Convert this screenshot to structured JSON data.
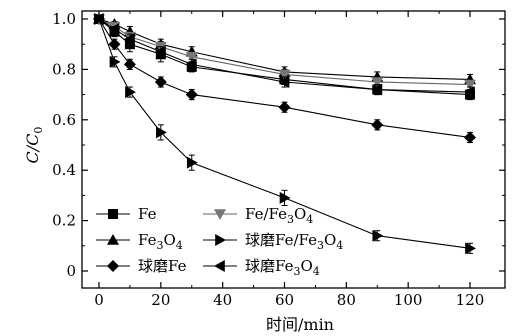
{
  "chart_data": {
    "type": "line",
    "xlabel": "时间/min",
    "ylabel": "C/C",
    "ylabel_sub": "0",
    "xlim": [
      -5,
      122
    ],
    "ylim": [
      -0.05,
      1.02
    ],
    "xticks": [
      "0",
      "20",
      "40",
      "60",
      "80",
      "100",
      "120"
    ],
    "yticks": [
      "0",
      "0.2",
      "0.4",
      "0.6",
      "0.8",
      "1.0"
    ],
    "legend_position": "bottom-left",
    "series": [
      {
        "name": "Fe",
        "name_parts": [
          {
            "t": "Fe"
          }
        ],
        "marker": "square",
        "x": [
          0,
          5,
          10,
          20,
          30,
          60,
          90,
          120
        ],
        "y": [
          1.0,
          0.95,
          0.9,
          0.86,
          0.81,
          0.76,
          0.72,
          0.7
        ],
        "err": [
          0.01,
          0.02,
          0.03,
          0.03,
          0.02,
          0.02,
          0.02,
          0.02
        ]
      },
      {
        "name": "Fe3O4",
        "name_parts": [
          {
            "t": "Fe"
          },
          {
            "t": "3",
            "sub": true
          },
          {
            "t": "O"
          },
          {
            "t": "4",
            "sub": true
          }
        ],
        "marker": "triangle-up",
        "x": [
          0,
          5,
          10,
          20,
          30,
          60,
          90,
          120
        ],
        "y": [
          1.0,
          0.98,
          0.95,
          0.9,
          0.87,
          0.79,
          0.77,
          0.76
        ],
        "err": [
          0.01,
          0.01,
          0.02,
          0.02,
          0.02,
          0.02,
          0.02,
          0.02
        ]
      },
      {
        "name": "球磨Fe",
        "name_parts": [
          {
            "t": "球磨Fe"
          }
        ],
        "marker": "diamond",
        "x": [
          0,
          5,
          10,
          20,
          30,
          60,
          90,
          120
        ],
        "y": [
          1.0,
          0.9,
          0.82,
          0.75,
          0.7,
          0.65,
          0.58,
          0.53
        ],
        "err": [
          0.01,
          0.02,
          0.02,
          0.02,
          0.02,
          0.02,
          0.02,
          0.02
        ]
      },
      {
        "name": "Fe/Fe3O4",
        "name_parts": [
          {
            "t": "Fe/Fe"
          },
          {
            "t": "3",
            "sub": true
          },
          {
            "t": "O"
          },
          {
            "t": "4",
            "sub": true
          }
        ],
        "marker": "triangle-down",
        "x": [
          0,
          5,
          10,
          20,
          30,
          60,
          90,
          120
        ],
        "y": [
          1.0,
          0.97,
          0.93,
          0.89,
          0.85,
          0.78,
          0.75,
          0.74
        ],
        "err": [
          0.01,
          0.01,
          0.02,
          0.02,
          0.02,
          0.02,
          0.02,
          0.02
        ]
      },
      {
        "name": "球磨Fe/Fe3O4",
        "name_parts": [
          {
            "t": "球磨Fe/Fe"
          },
          {
            "t": "3",
            "sub": true
          },
          {
            "t": "O"
          },
          {
            "t": "4",
            "sub": true
          }
        ],
        "marker": "triangle-right",
        "x": [
          0,
          5,
          10,
          20,
          30,
          60,
          90,
          120
        ],
        "y": [
          1.0,
          0.83,
          0.71,
          0.55,
          0.43,
          0.29,
          0.14,
          0.09
        ],
        "err": [
          0.01,
          0.02,
          0.02,
          0.03,
          0.03,
          0.03,
          0.02,
          0.02
        ]
      },
      {
        "name": "球磨Fe3O4",
        "name_parts": [
          {
            "t": "球磨Fe"
          },
          {
            "t": "3",
            "sub": true
          },
          {
            "t": "O"
          },
          {
            "t": "4",
            "sub": true
          }
        ],
        "marker": "triangle-left",
        "x": [
          0,
          5,
          10,
          20,
          30,
          60,
          90,
          120
        ],
        "y": [
          1.0,
          0.96,
          0.92,
          0.87,
          0.82,
          0.75,
          0.72,
          0.71
        ],
        "err": [
          0.01,
          0.01,
          0.02,
          0.02,
          0.02,
          0.02,
          0.02,
          0.02
        ]
      }
    ]
  }
}
